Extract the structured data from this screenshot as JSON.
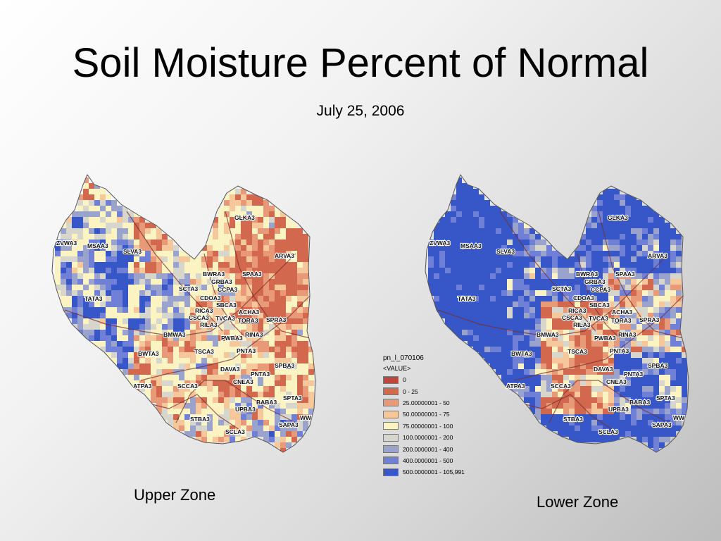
{
  "title": "Soil Moisture Percent of Normal",
  "date": "July 25, 2006",
  "maps": [
    {
      "caption": "Upper Zone",
      "basins": [
        "GLKA3",
        "ZVWA3",
        "MSAA3",
        "SLVA3",
        "ARVA3",
        "BWRA3",
        "SPAA3",
        "GRBA3",
        "SCTA3",
        "CCPA3",
        "TATA3",
        "CDOA3",
        "SBCA3",
        "RICA3",
        "ACHA3",
        "CSCA3",
        "TVCA3",
        "TORA3",
        "RILA3",
        "SPRA3",
        "BMWA3",
        "PWBA3",
        "RINA3",
        "TSCA3",
        "PNTA3",
        "BWTA3",
        "DAVA3",
        "PNTA3",
        "SPBA3",
        "CNEA3",
        "ATPA3",
        "SCCA3",
        "BABA3",
        "SPTA3",
        "UPBA3",
        "WW",
        "STBA3",
        "SAPA3",
        "SCLA3"
      ]
    },
    {
      "caption": "Lower Zone",
      "basins": [
        "GLKA3",
        "ZVWA3",
        "MSAA3",
        "SLVA3",
        "ARVA3",
        "BWRA3",
        "SPAA3",
        "GRBA3",
        "SCTA3",
        "CCPA3",
        "TATA3",
        "CDOA3",
        "SBCA3",
        "RICA3",
        "ACHA3",
        "CSCA3",
        "TVCA3",
        "TORA3",
        "RILA3",
        "SPRA3",
        "BMWA3",
        "PWBA3",
        "RINA3",
        "TSCA3",
        "PNTA3",
        "BWTA3",
        "DAVA3",
        "PNTA3",
        "SPBA3",
        "CNEA3",
        "ATPA3",
        "SCCA3",
        "BABA3",
        "SPTA3",
        "UPBA3",
        "WW",
        "STBA3",
        "SAPA3",
        "SCLA3"
      ]
    }
  ],
  "legend": {
    "title": "pn_l_070106",
    "subtitle": "<VALUE>",
    "classes": [
      {
        "label": "0",
        "color": "#c0453a"
      },
      {
        "label": "0 - 25",
        "color": "#d2684e"
      },
      {
        "label": "25.00000001 - 50",
        "color": "#e89a78"
      },
      {
        "label": "50.00000001 - 75",
        "color": "#f5c79a"
      },
      {
        "label": "75.00000001 - 100",
        "color": "#fbf4c2"
      },
      {
        "label": "100.0000001 - 200",
        "color": "#d6d6cc"
      },
      {
        "label": "200.0000001 - 400",
        "color": "#9aa3cc"
      },
      {
        "label": "400.0000001 - 500",
        "color": "#6f80d6"
      },
      {
        "label": "500.0000001 - 105,991",
        "color": "#3757c9"
      }
    ]
  }
}
